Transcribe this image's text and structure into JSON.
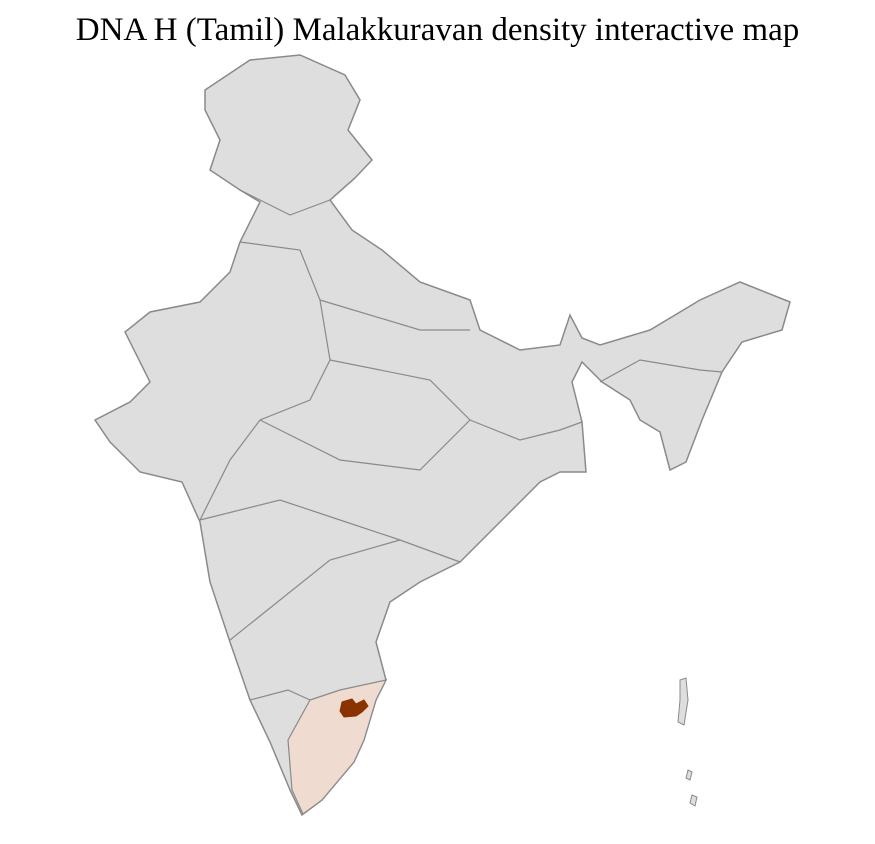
{
  "title": "DNA H (Tamil) Malakkuravan density interactive map",
  "colors": {
    "land": "#dedede",
    "border": "#8a8a8a",
    "district_lines": "#ffffff",
    "state_highlight": "#efdbcf",
    "district_highlight": "#8b3300"
  }
}
